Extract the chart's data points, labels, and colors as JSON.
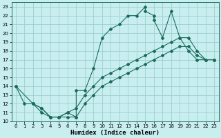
{
  "xlabel": "Humidex (Indice chaleur)",
  "background_color": "#c8eef0",
  "grid_color": "#9dcfcf",
  "line_color": "#1a6b5a",
  "xlim": [
    -0.5,
    23.5
  ],
  "ylim": [
    10,
    23.5
  ],
  "xticks": [
    0,
    1,
    2,
    3,
    4,
    5,
    6,
    7,
    8,
    9,
    10,
    11,
    12,
    13,
    14,
    15,
    16,
    17,
    18,
    19,
    20,
    21,
    22,
    23
  ],
  "yticks": [
    10,
    11,
    12,
    13,
    14,
    15,
    16,
    17,
    18,
    19,
    20,
    21,
    22,
    23
  ],
  "series1_x": [
    0,
    1,
    2,
    3,
    4,
    5,
    6,
    7,
    7,
    8,
    9,
    10,
    11,
    12,
    13,
    14,
    15,
    15,
    16,
    16,
    17,
    18,
    19,
    20,
    21,
    22,
    23
  ],
  "series1_y": [
    14,
    12,
    12,
    11.5,
    10.5,
    10.5,
    11,
    10.5,
    13.5,
    13.5,
    16,
    19.5,
    20.5,
    21,
    22,
    22,
    23,
    22.5,
    22,
    21.5,
    19.5,
    22.5,
    19.5,
    18,
    17,
    17,
    17
  ],
  "series2_x": [
    0,
    2,
    3,
    4,
    5,
    6,
    7,
    8,
    9,
    10,
    11,
    12,
    13,
    14,
    15,
    16,
    17,
    18,
    19,
    20,
    21,
    22,
    23
  ],
  "series2_y": [
    14,
    12,
    11.5,
    10.5,
    10.5,
    11,
    11.5,
    13,
    14,
    15,
    15.5,
    16,
    16.5,
    17,
    17.5,
    18,
    18.5,
    19,
    19.5,
    19.5,
    18,
    17,
    17
  ],
  "series3_x": [
    2,
    3,
    4,
    5,
    6,
    7,
    8,
    9,
    10,
    11,
    12,
    13,
    14,
    15,
    16,
    17,
    18,
    19,
    20,
    21,
    22,
    23
  ],
  "series3_y": [
    12,
    11,
    10.5,
    10.5,
    10.5,
    10.5,
    12,
    13,
    14,
    14.5,
    15,
    15.5,
    16,
    16.5,
    17,
    17.5,
    18,
    18.5,
    18.5,
    17.5,
    17,
    17
  ],
  "marker": "D",
  "markersize": 2.0,
  "linewidth": 0.8,
  "xlabel_fontsize": 6.5,
  "tick_fontsize": 5.0
}
